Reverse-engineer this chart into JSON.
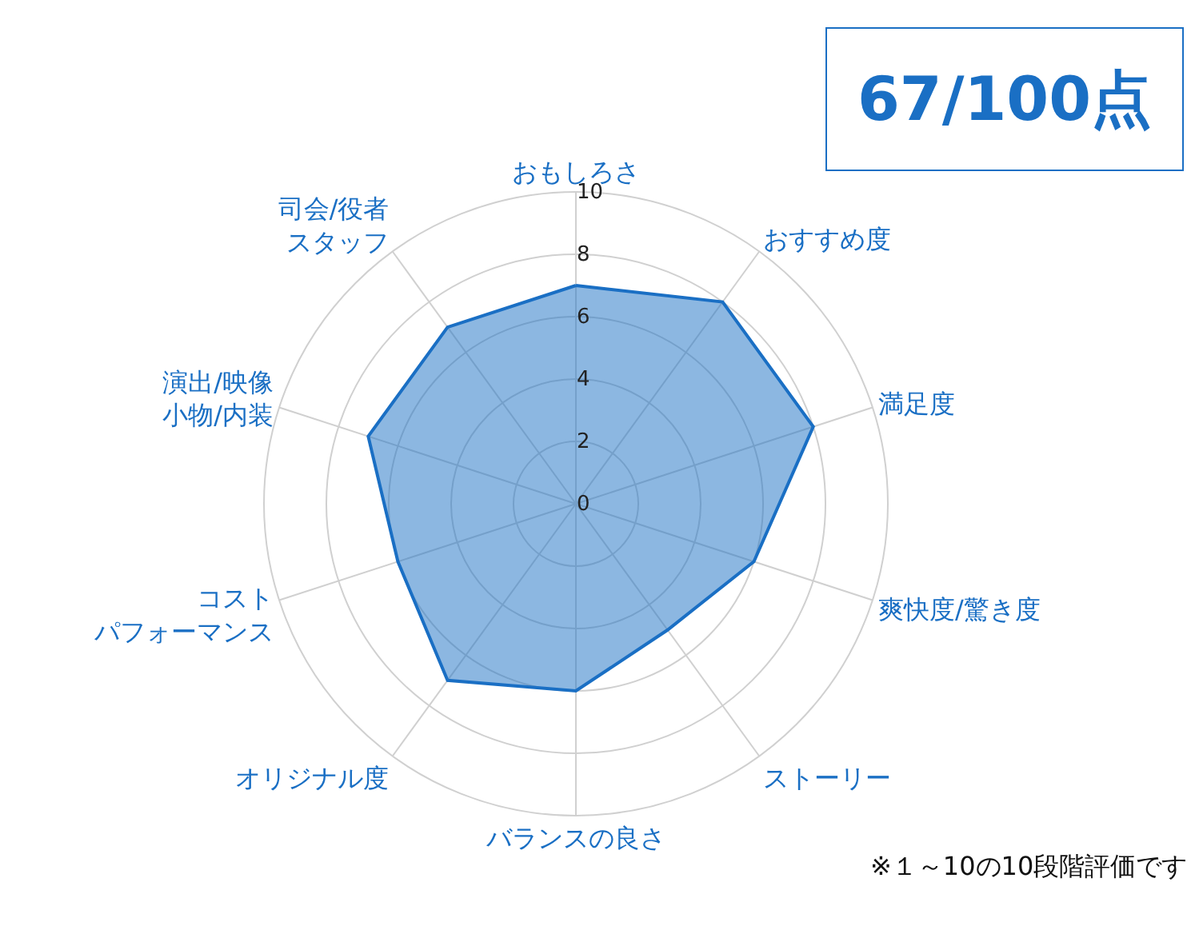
{
  "chart_data": {
    "type": "radar",
    "title": "67/100点",
    "categories": [
      "おもしろさ",
      "おすすめ度",
      "満足度",
      "爽快度/驚き度",
      "ストーリー",
      "バランスの良さ",
      "オリジナル度",
      "コストパフォーマンス",
      "演出/映像小物/内装",
      "司会/役者スタッフ"
    ],
    "series": [
      {
        "color": "#1a6fc4",
        "values": [
          7,
          8,
          8,
          6,
          5,
          6,
          7,
          6,
          7,
          7
        ]
      }
    ],
    "ylim": [
      0,
      10
    ],
    "yticks": [
      0,
      2,
      4,
      6,
      8,
      10
    ],
    "grid": true,
    "marker": "none",
    "annotations": [
      "※１～10の10段階評価です"
    ]
  }
}
